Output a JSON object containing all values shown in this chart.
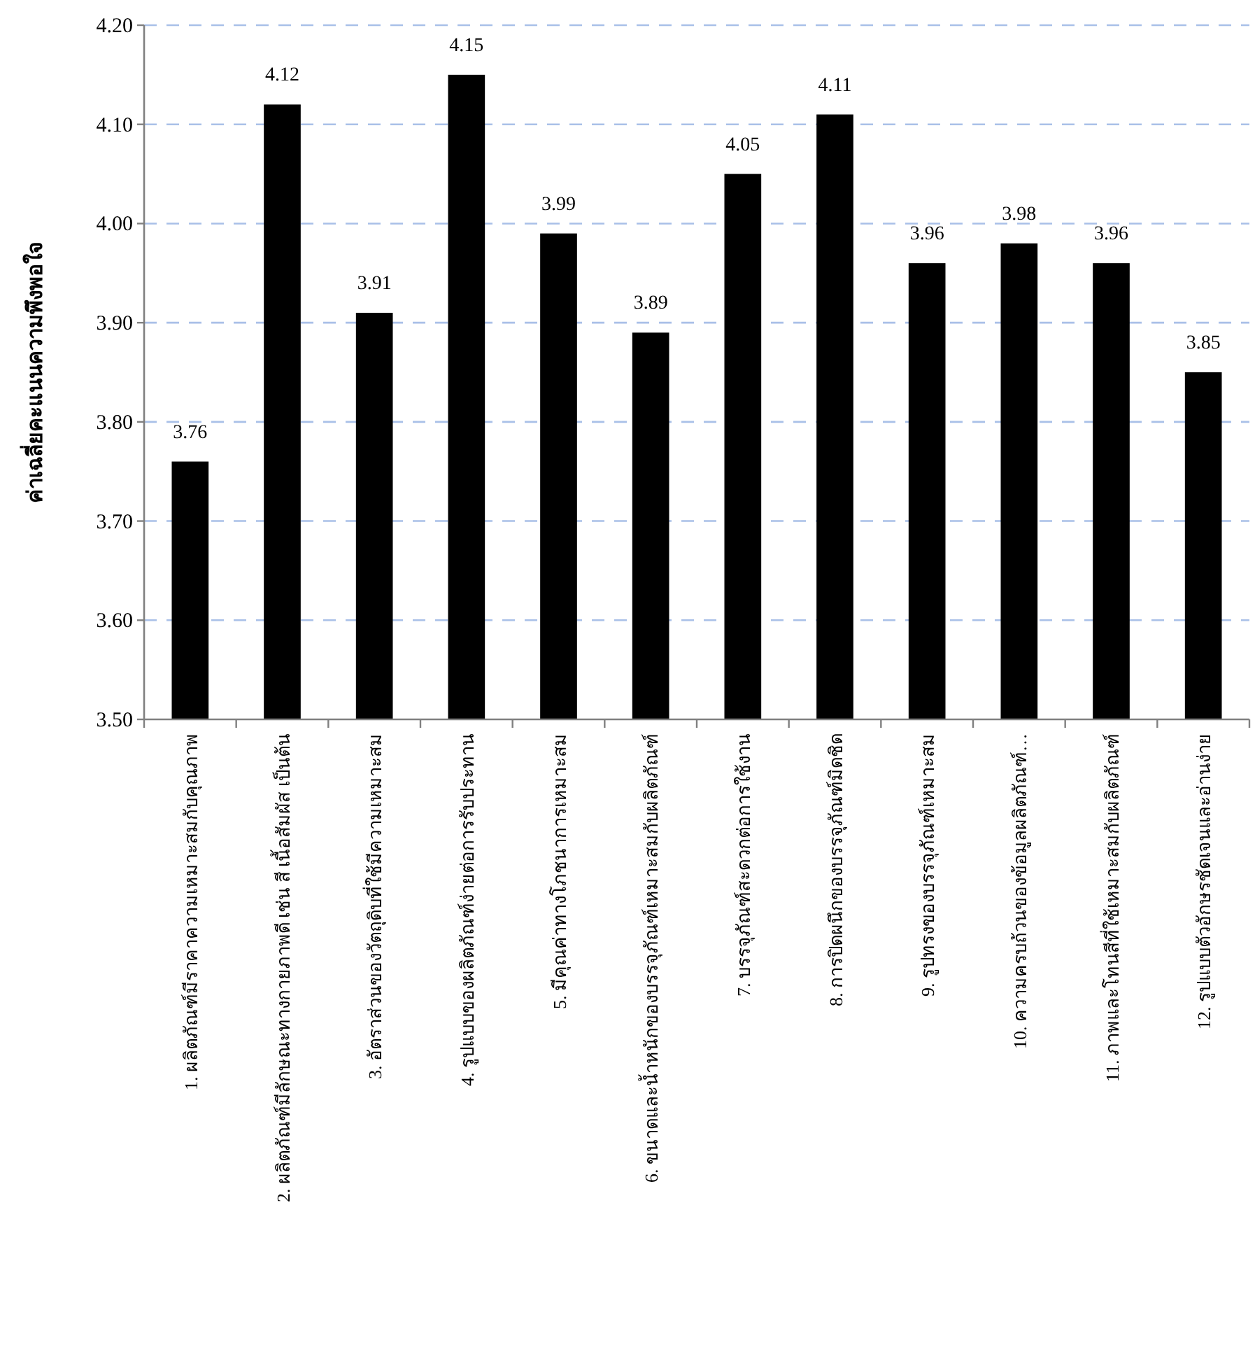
{
  "chart_data": {
    "type": "bar",
    "ylabel": "ค่าเฉลี่ยคะแนนความพึงพอใจ",
    "categories": [
      "1. ผลิตภัณฑ์มีราคาความเหมาะสมกับคุณภาพ",
      "2. ผลิตภัณฑ์มีลักษณะทางกายภาพดี เช่น สี เนื้อสัมผัส เป็นต้น",
      "3. อัตราส่วนของวัตถุดิบที่ใช้มีความเหมาะสม",
      "4. รูปแบบของผลิตภัณฑ์ง่ายต่อการรับประทาน",
      "5. มีคุณค่าทางโภชนาการเหมาะสม",
      "6. ขนาดและน้ำหนักของบรรจุภัณฑ์เหมาะสมกับผลิตภัณฑ์",
      "7. บรรจุภัณฑ์สะดวกต่อการใช้งาน",
      "8. การปิดผนึกของบรรจุภัณฑ์มิดชิด",
      "9. รูปทรงของบรรจุภัณฑ์เหมาะสม",
      "10. ความครบถ้วนของข้อมูลผลิตภัณฑ์…",
      "11. ภาพและโทนสีที่ใช้เหมาะสมกับผลิตภัณฑ์",
      "12. รูปแบบตัวอักษรชัดเจนและอ่านง่าย"
    ],
    "values": [
      3.76,
      4.12,
      3.91,
      4.15,
      3.99,
      3.89,
      4.05,
      4.11,
      3.96,
      3.98,
      3.96,
      3.85
    ],
    "color": "#000000",
    "data_labels": true,
    "grid": "y",
    "ylim": [
      3.5,
      4.2
    ],
    "yticks": [
      {
        "value": 3.5,
        "label": "3.50"
      },
      {
        "value": 3.6,
        "label": "3.60"
      },
      {
        "value": 3.7,
        "label": "3.70"
      },
      {
        "value": 3.8,
        "label": "3.80"
      },
      {
        "value": 3.9,
        "label": "3.90"
      },
      {
        "value": 4.0,
        "label": "4.00"
      },
      {
        "value": 4.1,
        "label": "4.10"
      },
      {
        "value": 4.2,
        "label": "4.20"
      }
    ]
  }
}
